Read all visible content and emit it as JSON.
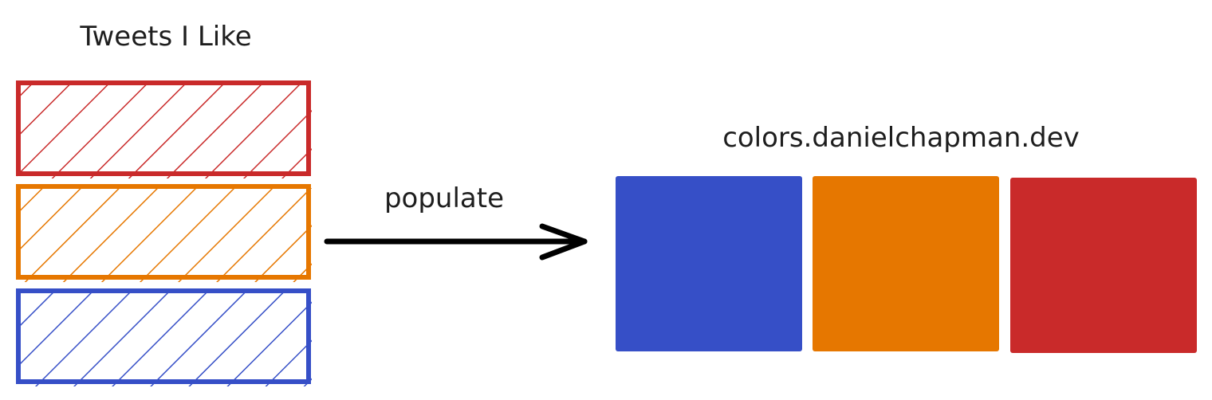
{
  "left_column": {
    "title": "Tweets I Like",
    "tweets": [
      {
        "color": "#c92a2a"
      },
      {
        "color": "#e67700"
      },
      {
        "color": "#364fc7"
      }
    ]
  },
  "arrow": {
    "label": "populate",
    "color": "#000000"
  },
  "right_column": {
    "title": "colors.danielchapman.dev",
    "swatches": [
      {
        "color": "#364fc7"
      },
      {
        "color": "#e67700"
      },
      {
        "color": "#c92a2a"
      }
    ]
  }
}
